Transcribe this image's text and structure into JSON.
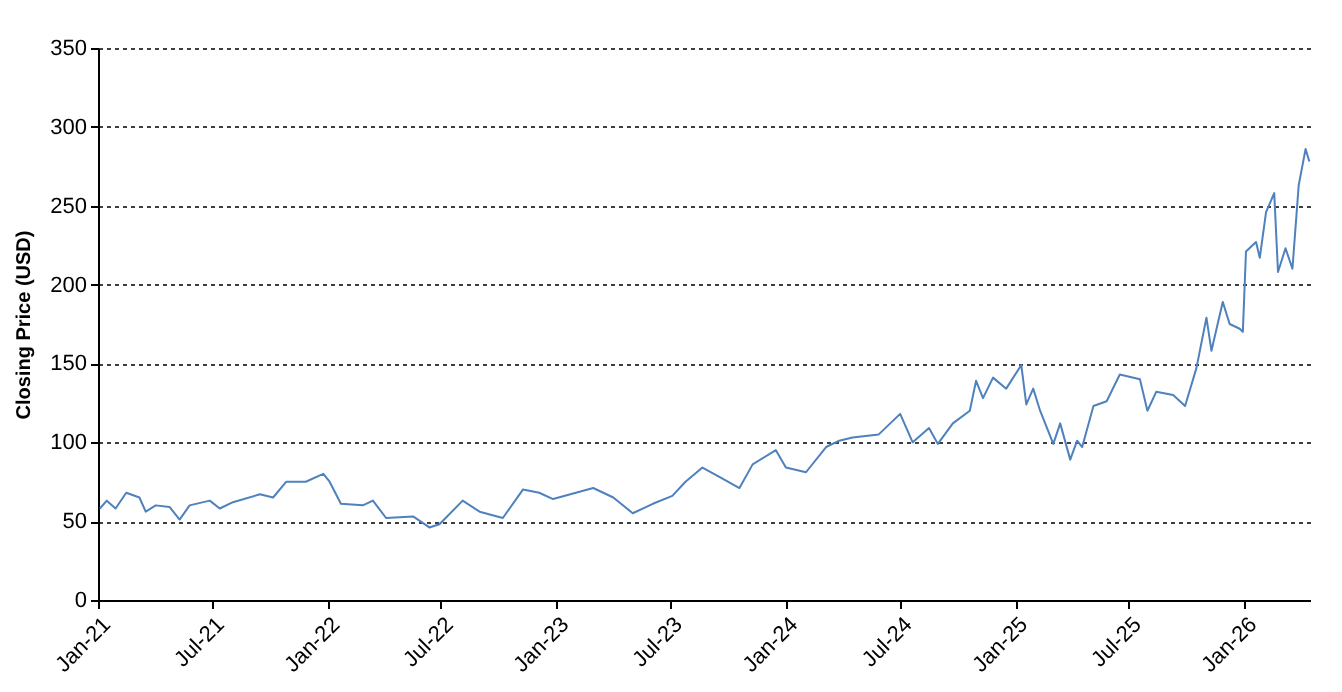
{
  "chart_data": {
    "type": "line",
    "ylabel": "Closing Price (USD)",
    "x": [
      "2021-01-04",
      "2021-01-15",
      "2021-01-29",
      "2021-02-15",
      "2021-03-08",
      "2021-03-18",
      "2021-04-03",
      "2021-04-25",
      "2021-05-11",
      "2021-05-27",
      "2021-06-28",
      "2021-07-14",
      "2021-08-04",
      "2021-09-16",
      "2021-10-07",
      "2021-10-28",
      "2021-11-28",
      "2021-12-26",
      "2022-01-05",
      "2022-01-23",
      "2022-02-27",
      "2022-03-15",
      "2022-04-05",
      "2022-05-18",
      "2022-06-13",
      "2022-06-29",
      "2022-08-05",
      "2022-09-01",
      "2022-10-08",
      "2022-11-09",
      "2022-12-05",
      "2022-12-27",
      "2023-03-01",
      "2023-04-02",
      "2023-05-03",
      "2023-06-04",
      "2023-07-05",
      "2023-07-26",
      "2023-08-22",
      "2023-09-18",
      "2023-10-20",
      "2023-11-10",
      "2023-12-17",
      "2024-01-02",
      "2024-02-03",
      "2024-03-06",
      "2024-03-27",
      "2024-04-17",
      "2024-05-29",
      "2024-07-02",
      "2024-07-22",
      "2024-08-17",
      "2024-08-31",
      "2024-09-24",
      "2024-10-21",
      "2024-10-31",
      "2024-11-11",
      "2024-11-27",
      "2024-12-18",
      "2025-01-11",
      "2025-01-19",
      "2025-01-30",
      "2025-02-10",
      "2025-03-03",
      "2025-03-14",
      "2025-03-30",
      "2025-04-10",
      "2025-04-18",
      "2025-05-06",
      "2025-05-27",
      "2025-06-17",
      "2025-07-19",
      "2025-07-31",
      "2025-08-14",
      "2025-09-10",
      "2025-09-29",
      "2025-10-17",
      "2025-11-02",
      "2025-11-10",
      "2025-11-28",
      "2025-12-09",
      "2025-12-25",
      "2025-12-30",
      "2026-01-04",
      "2026-01-20",
      "2026-01-26",
      "2026-02-05",
      "2026-02-18",
      "2026-02-24",
      "2026-03-08",
      "2026-03-19",
      "2026-03-29",
      "2026-04-09",
      "2026-04-15"
    ],
    "series": [
      {
        "color": "#4f81bd",
        "values": [
          58,
          63,
          58,
          68,
          65,
          56,
          60,
          59,
          51,
          60,
          63,
          58,
          62,
          67,
          65,
          75,
          75,
          80,
          75,
          61,
          60,
          63,
          52,
          53,
          46,
          48,
          63,
          56,
          52,
          70,
          68,
          64,
          71,
          65,
          55,
          61,
          66,
          75,
          84,
          78,
          71,
          86,
          95,
          84,
          81,
          97,
          101,
          103,
          105,
          118,
          100,
          109,
          99,
          112,
          120,
          139,
          128,
          141,
          134,
          149,
          124,
          134,
          120,
          99,
          112,
          89,
          101,
          97,
          123,
          126,
          143,
          140,
          120,
          132,
          130,
          123,
          147,
          179,
          158,
          189,
          175,
          172,
          170,
          221,
          227,
          217,
          246,
          258,
          208,
          223,
          210,
          263,
          286,
          278
        ]
      }
    ],
    "xlim": [
      "2021-01-01",
      "2026-04-16"
    ],
    "xticks": [
      {
        "value": "2021-01-01",
        "label": "Jan-21"
      },
      {
        "value": "2021-07-01",
        "label": "Jul-21"
      },
      {
        "value": "2022-01-01",
        "label": "Jan-22"
      },
      {
        "value": "2022-07-01",
        "label": "Jul-22"
      },
      {
        "value": "2023-01-01",
        "label": "Jan-23"
      },
      {
        "value": "2023-07-01",
        "label": "Jul-23"
      },
      {
        "value": "2024-01-01",
        "label": "Jan-24"
      },
      {
        "value": "2024-07-01",
        "label": "Jul-24"
      },
      {
        "value": "2025-01-01",
        "label": "Jan-25"
      },
      {
        "value": "2025-07-01",
        "label": "Jul-25"
      },
      {
        "value": "2026-01-01",
        "label": "Jan-26"
      }
    ],
    "ylim": [
      0,
      350
    ],
    "yticks": [
      0,
      50,
      100,
      150,
      200,
      250,
      300,
      350
    ],
    "grid": "y",
    "line_style": "solid"
  }
}
